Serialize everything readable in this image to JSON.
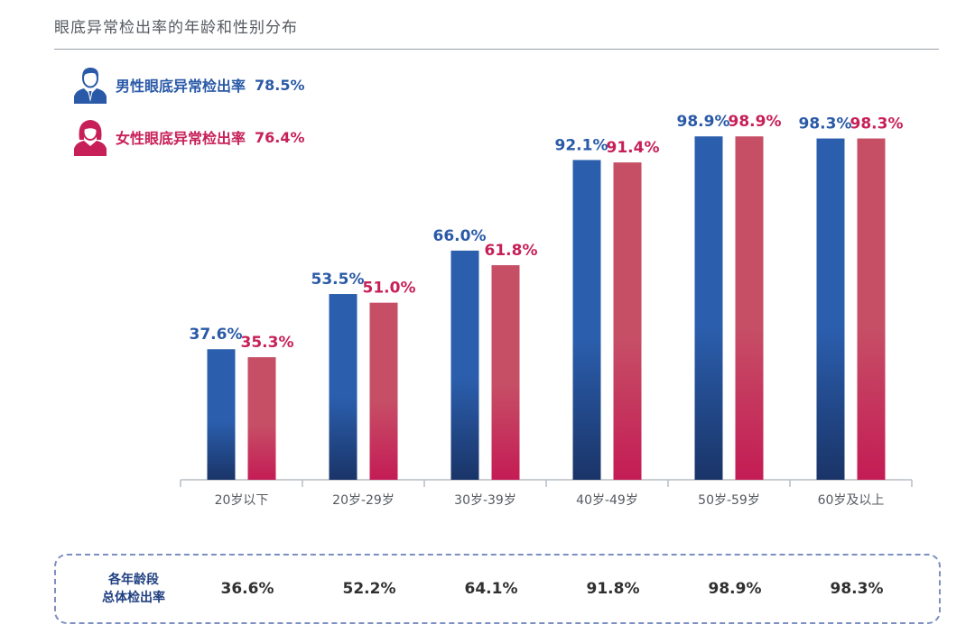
{
  "title": "眼底异常检出率的年龄和性别分布",
  "legend": {
    "male": {
      "label": "男性眼底异常检出率",
      "value": "78.5%",
      "icon": "male-person-icon"
    },
    "female": {
      "label": "女性眼底异常检出率",
      "value": "76.4%",
      "icon": "female-person-icon"
    }
  },
  "chart_data": {
    "type": "bar",
    "title": "眼底异常检出率的年龄和性别分布",
    "xlabel": "",
    "ylabel": "",
    "ylim": [
      0,
      100
    ],
    "grid": false,
    "categories": [
      "20岁以下",
      "20岁-29岁",
      "30岁-39岁",
      "40岁-49岁",
      "50岁-59岁",
      "60岁及以上"
    ],
    "series": [
      {
        "name": "男性眼底异常检出率",
        "values": [
          37.6,
          53.5,
          66.0,
          92.1,
          98.9,
          98.3
        ],
        "labels": [
          "37.6%",
          "53.5%",
          "66.0%",
          "92.1%",
          "98.9%",
          "98.3%"
        ],
        "color": "#2a5aa7"
      },
      {
        "name": "女性眼底异常检出率",
        "values": [
          35.3,
          51.0,
          61.8,
          91.4,
          98.9,
          98.3
        ],
        "labels": [
          "35.3%",
          "51.0%",
          "61.8%",
          "91.4%",
          "98.9%",
          "98.3%"
        ],
        "color": "#c72058"
      }
    ]
  },
  "summary": {
    "label_line1": "各年龄段",
    "label_line2": "总体检出率",
    "values": [
      "36.6%",
      "52.2%",
      "64.1%",
      "91.8%",
      "98.9%",
      "98.3%"
    ]
  },
  "colors": {
    "male_top": "#2b5fae",
    "male_bottom": "#1a3468",
    "female_top": "#c64f66",
    "female_bottom": "#c41c55",
    "axis": "#b9bec4"
  }
}
